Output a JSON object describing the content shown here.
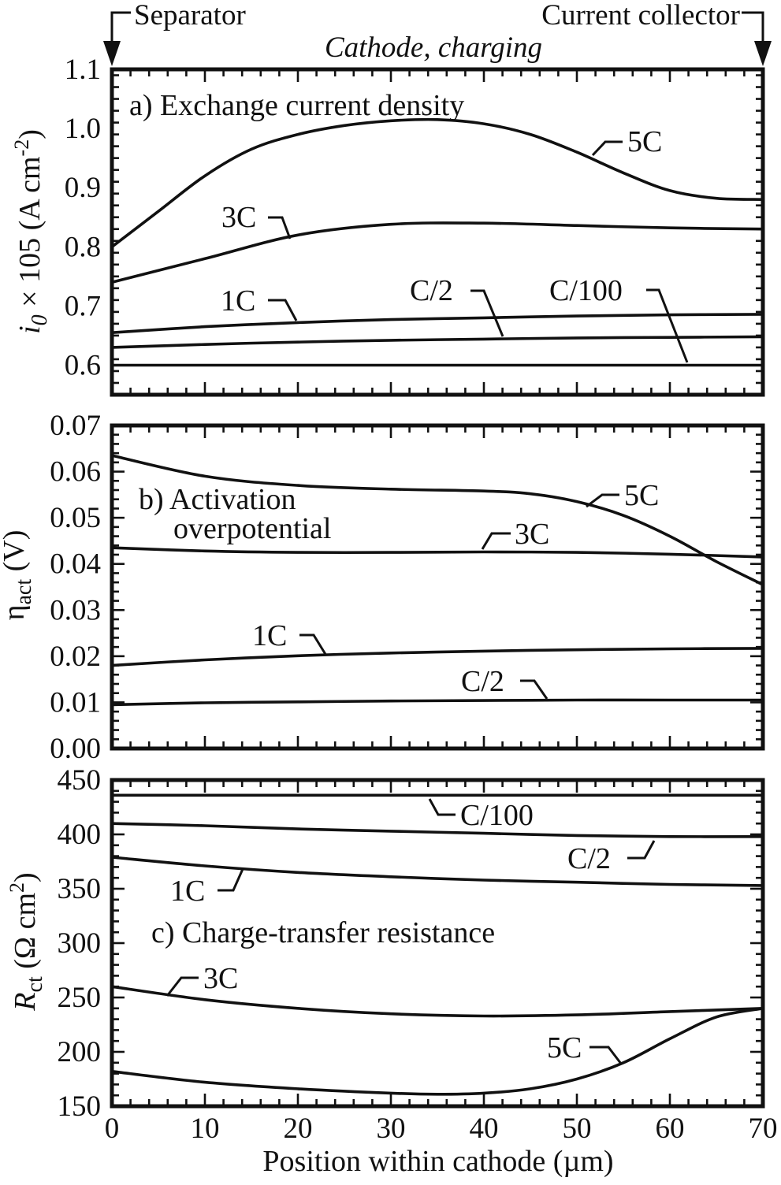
{
  "header": {
    "left_label": "Separator",
    "right_label": "Current collector",
    "subtitle": "Cathode, charging"
  },
  "x_axis_label": "Position within cathode (µm)",
  "chart_data": [
    {
      "type": "line",
      "panel_label": "a) Exchange current density",
      "ylabel": {
        "symbol": "i",
        "sub": "0",
        "rest": " × 105 (A cm",
        "sup": "-2",
        "end": ")"
      },
      "xlim": [
        0,
        70
      ],
      "ylim": [
        0.55,
        1.1
      ],
      "x_ticks": [
        0,
        10,
        20,
        30,
        40,
        50,
        60,
        70
      ],
      "y_ticks": [
        0.6,
        0.7,
        0.8,
        0.9,
        1.0,
        1.1
      ],
      "y_tick_labels": [
        "0.6",
        "0.7",
        "0.8",
        "0.9",
        "1.0",
        "1.1"
      ],
      "series": [
        {
          "name": "5C",
          "x": [
            0,
            5,
            10,
            15,
            20,
            25,
            30,
            35,
            40,
            45,
            50,
            55,
            60,
            65,
            70
          ],
          "y": [
            0.8,
            0.86,
            0.92,
            0.965,
            0.99,
            1.005,
            1.013,
            1.015,
            1.008,
            0.99,
            0.96,
            0.925,
            0.895,
            0.882,
            0.88
          ]
        },
        {
          "name": "3C",
          "x": [
            0,
            10,
            20,
            30,
            40,
            50,
            60,
            70
          ],
          "y": [
            0.74,
            0.78,
            0.82,
            0.838,
            0.84,
            0.836,
            0.832,
            0.83
          ]
        },
        {
          "name": "1C",
          "x": [
            0,
            10,
            20,
            30,
            40,
            50,
            60,
            70
          ],
          "y": [
            0.655,
            0.665,
            0.672,
            0.677,
            0.68,
            0.683,
            0.685,
            0.686
          ]
        },
        {
          "name": "C/2",
          "x": [
            0,
            10,
            20,
            30,
            40,
            50,
            60,
            70
          ],
          "y": [
            0.63,
            0.635,
            0.639,
            0.642,
            0.644,
            0.646,
            0.647,
            0.648
          ]
        },
        {
          "name": "C/100",
          "x": [
            0,
            70
          ],
          "y": [
            0.6,
            0.6
          ]
        }
      ]
    },
    {
      "type": "line",
      "panel_label": [
        "b) Activation",
        "overpotential"
      ],
      "ylabel": {
        "symbol": "η",
        "sub": "act",
        "rest": " (V)"
      },
      "xlim": [
        0,
        70
      ],
      "ylim": [
        0.0,
        0.07
      ],
      "x_ticks": [
        0,
        10,
        20,
        30,
        40,
        50,
        60,
        70
      ],
      "y_ticks": [
        0.0,
        0.01,
        0.02,
        0.03,
        0.04,
        0.05,
        0.06,
        0.07
      ],
      "y_tick_labels": [
        "0.00",
        "0.01",
        "0.02",
        "0.03",
        "0.04",
        "0.05",
        "0.06",
        "0.07"
      ],
      "series": [
        {
          "name": "5C",
          "x": [
            0,
            10,
            20,
            30,
            40,
            45,
            50,
            55,
            60,
            65,
            70
          ],
          "y": [
            0.0635,
            0.059,
            0.057,
            0.0562,
            0.0558,
            0.0552,
            0.0535,
            0.0505,
            0.046,
            0.0405,
            0.0355
          ]
        },
        {
          "name": "3C",
          "x": [
            0,
            10,
            20,
            30,
            40,
            50,
            60,
            70
          ],
          "y": [
            0.0435,
            0.0428,
            0.0425,
            0.0425,
            0.0426,
            0.0425,
            0.0421,
            0.0415
          ]
        },
        {
          "name": "1C",
          "x": [
            0,
            10,
            20,
            30,
            40,
            50,
            60,
            70
          ],
          "y": [
            0.018,
            0.0192,
            0.0201,
            0.0207,
            0.0211,
            0.0214,
            0.0216,
            0.0217
          ]
        },
        {
          "name": "C/2",
          "x": [
            0,
            10,
            20,
            30,
            40,
            50,
            60,
            70
          ],
          "y": [
            0.0095,
            0.0099,
            0.0101,
            0.0103,
            0.0104,
            0.0105,
            0.0105,
            0.0105
          ]
        }
      ]
    },
    {
      "type": "line",
      "panel_label": "c) Charge-transfer resistance",
      "ylabel": {
        "symbol": "R",
        "sub": "ct",
        "rest": " (Ω cm",
        "sup": "2",
        "end": ")"
      },
      "xlim": [
        0,
        70
      ],
      "ylim": [
        150,
        450
      ],
      "x_ticks": [
        0,
        10,
        20,
        30,
        40,
        50,
        60,
        70
      ],
      "x_tick_labels": [
        "0",
        "10",
        "20",
        "30",
        "40",
        "50",
        "60",
        "70"
      ],
      "y_ticks": [
        150,
        200,
        250,
        300,
        350,
        400,
        450
      ],
      "y_tick_labels": [
        "150",
        "200",
        "250",
        "300",
        "350",
        "400",
        "450"
      ],
      "series": [
        {
          "name": "C/100",
          "x": [
            0,
            70
          ],
          "y": [
            436,
            436
          ]
        },
        {
          "name": "C/2",
          "x": [
            0,
            10,
            20,
            30,
            40,
            50,
            60,
            70
          ],
          "y": [
            410,
            408,
            405,
            403,
            401,
            399,
            398,
            398
          ]
        },
        {
          "name": "1C",
          "x": [
            0,
            10,
            20,
            30,
            40,
            50,
            60,
            70
          ],
          "y": [
            379,
            371,
            365,
            361,
            358,
            356,
            354,
            353
          ]
        },
        {
          "name": "3C",
          "x": [
            0,
            10,
            20,
            30,
            40,
            50,
            60,
            70
          ],
          "y": [
            260,
            248,
            240,
            235,
            233,
            234,
            237,
            240
          ]
        },
        {
          "name": "5C",
          "x": [
            0,
            10,
            20,
            30,
            35,
            40,
            45,
            50,
            55,
            60,
            65,
            70
          ],
          "y": [
            182,
            172,
            166,
            162,
            161,
            162,
            166,
            175,
            190,
            212,
            232,
            240
          ]
        }
      ]
    }
  ]
}
